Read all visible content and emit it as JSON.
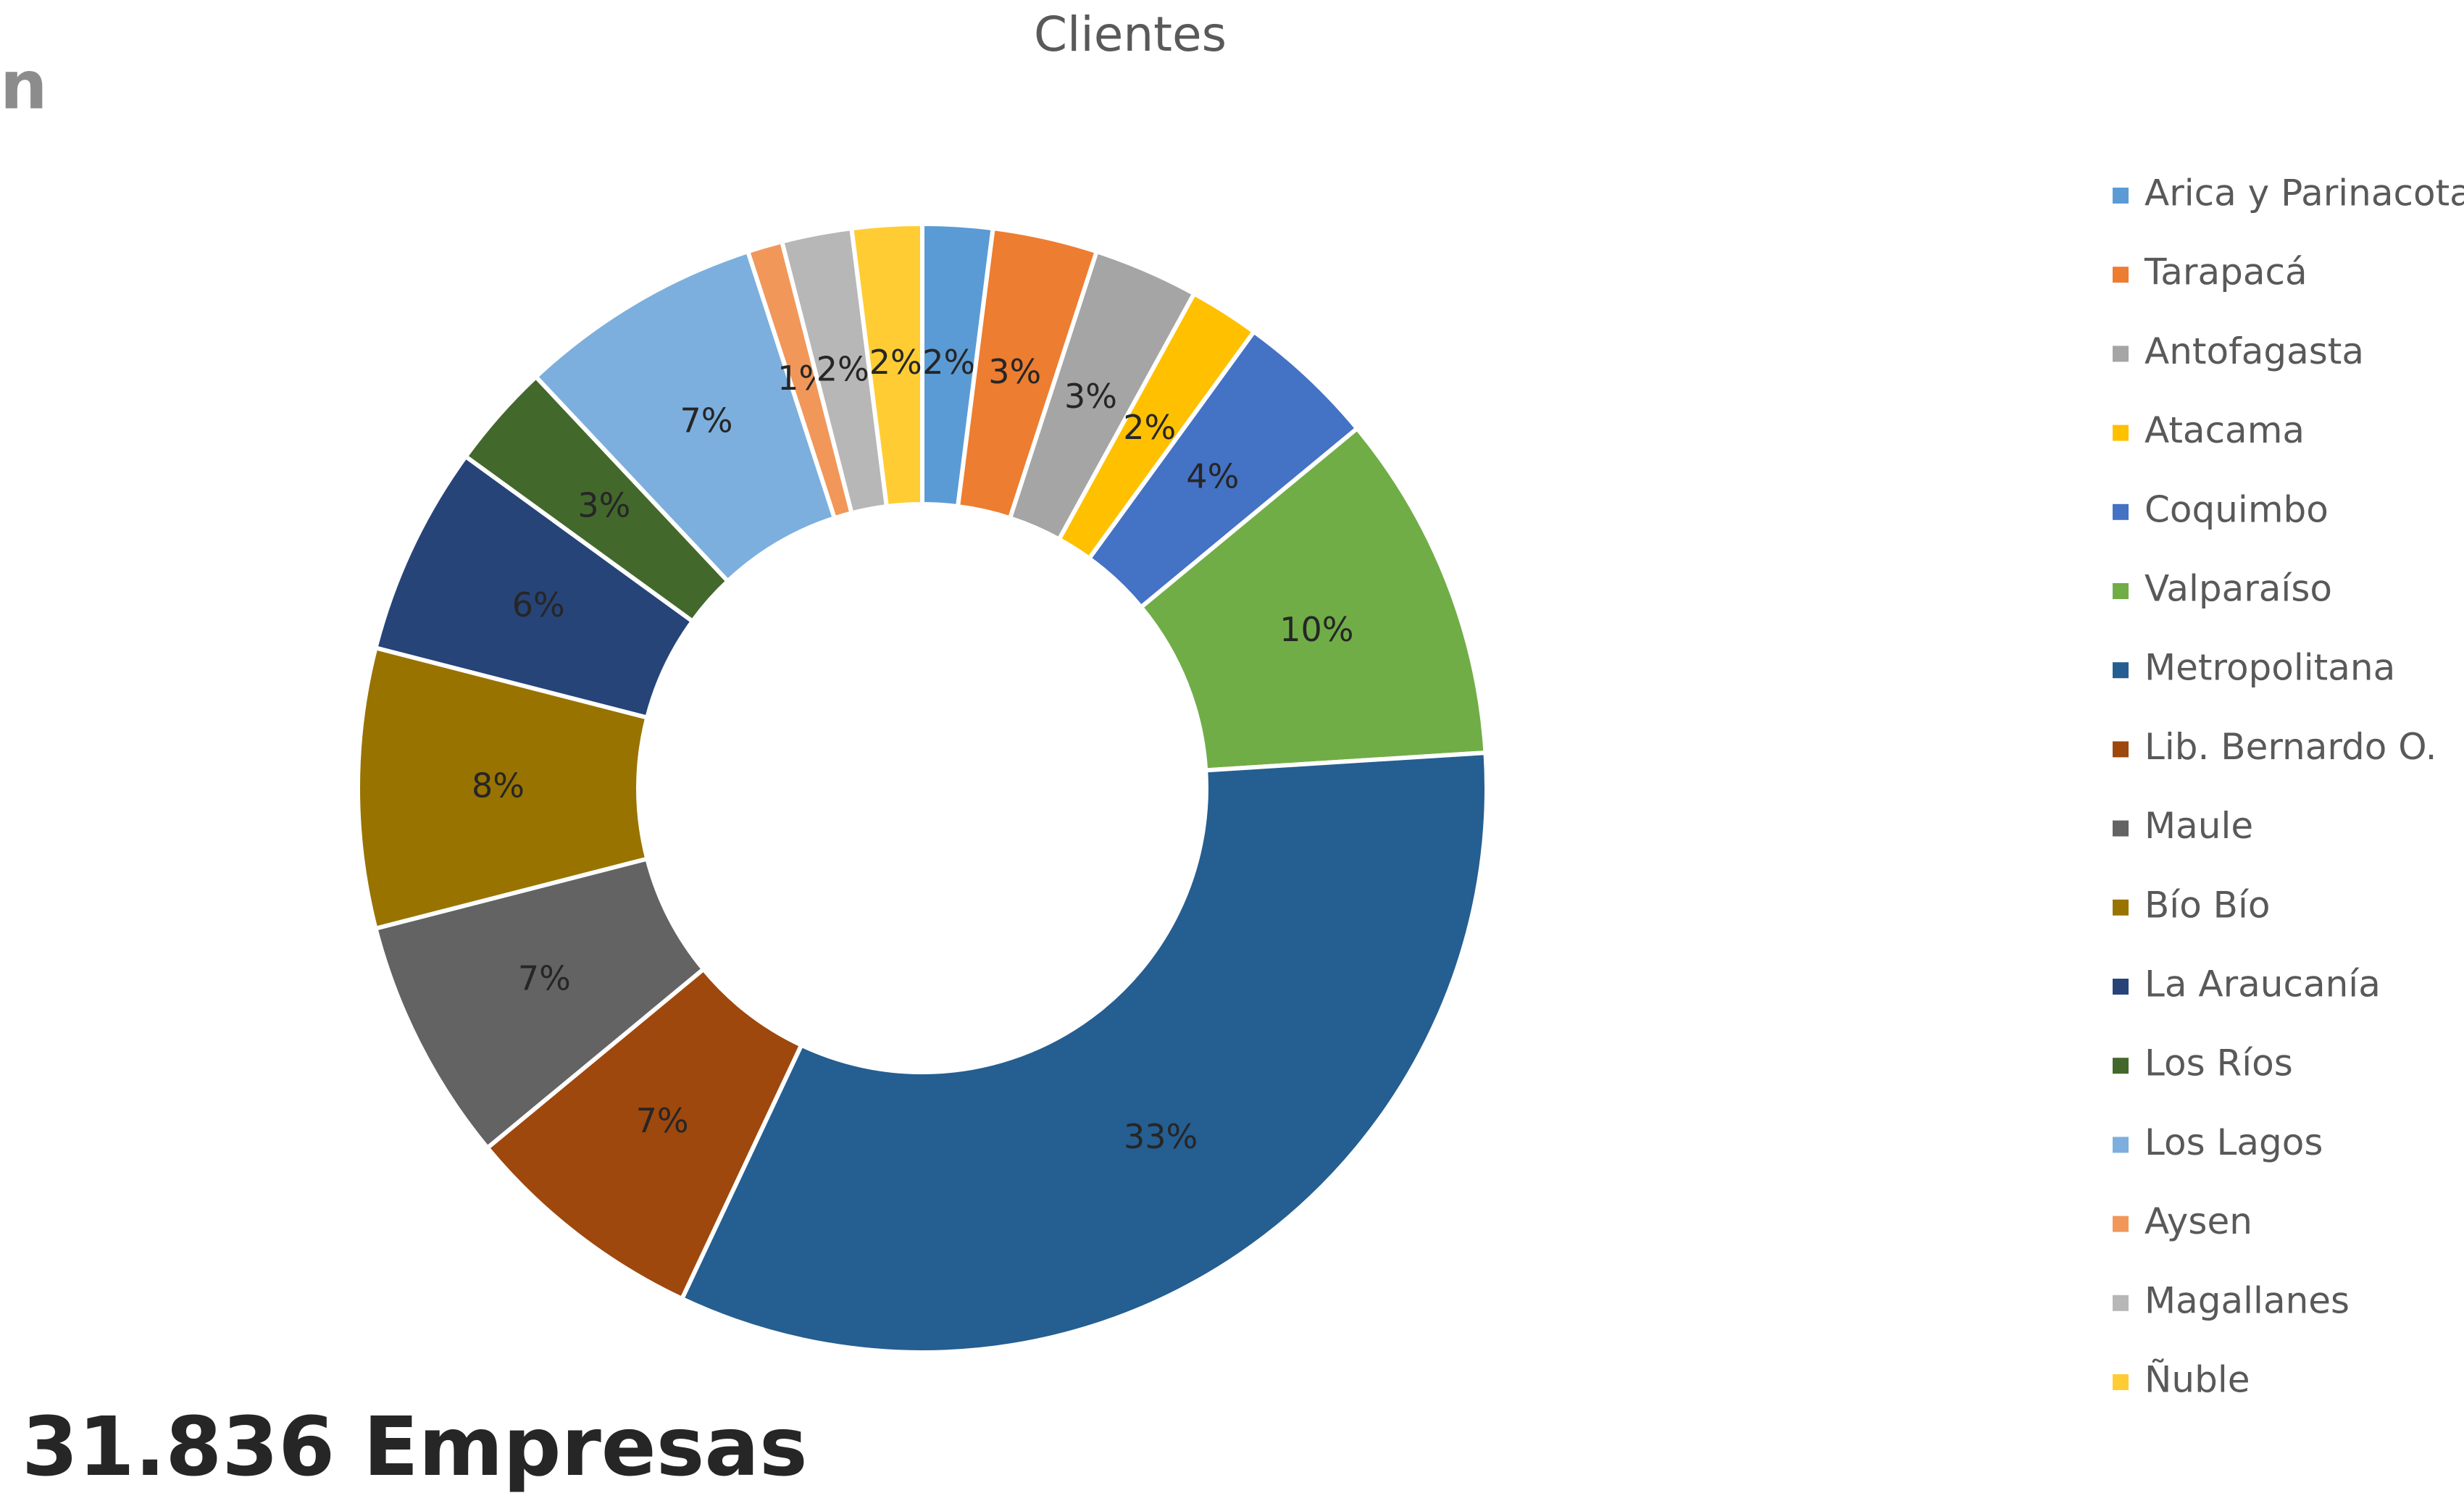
{
  "chart_data": {
    "type": "donut",
    "title": "Clientes",
    "categories": [
      "Arica y Parinacota",
      "Tarapacá",
      "Antofagasta",
      "Atacama",
      "Coquimbo",
      "Valparaíso",
      "Metropolitana",
      "Lib. Bernardo O.",
      "Maule",
      "Bío Bío",
      "La Araucanía",
      "Los Ríos",
      "Los Lagos",
      "Aysen",
      "Magallanes",
      "Ñuble"
    ],
    "values": [
      2,
      3,
      3,
      2,
      4,
      10,
      33,
      7,
      7,
      8,
      6,
      3,
      7,
      1,
      2,
      2
    ],
    "value_labels": [
      "2%",
      "3%",
      "3%",
      "2%",
      "4%",
      "10%",
      "33%",
      "7%",
      "7%",
      "8%",
      "6%",
      "3%",
      "7%",
      "1%",
      "2%",
      "2%"
    ],
    "colors": [
      "#5b9bd5",
      "#ed7d31",
      "#a5a5a5",
      "#ffc000",
      "#4472c4",
      "#70ad47",
      "#255e91",
      "#9e480e",
      "#636363",
      "#997300",
      "#264478",
      "#43682b",
      "#7cafdd",
      "#f1975a",
      "#b7b7b7",
      "#ffcd33"
    ],
    "legend": "right",
    "annotations": [
      "n",
      "31.836 Empresas"
    ]
  }
}
